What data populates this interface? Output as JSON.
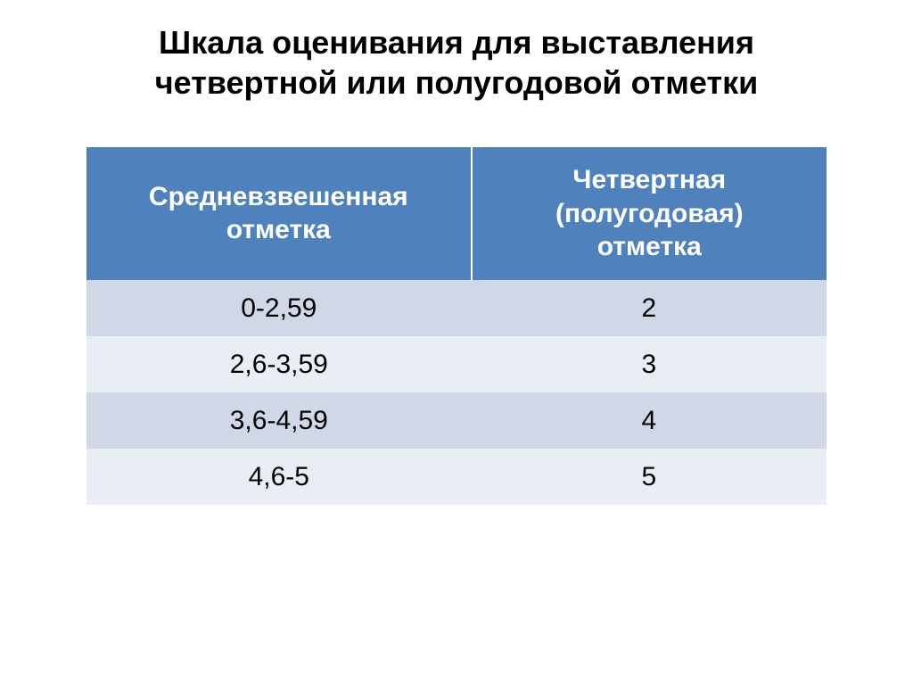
{
  "title_line1": "Шкала оценивания для выставления",
  "title_line2": "четвертной или полугодовой отметки",
  "table": {
    "header_left_l1": "Средневзвешенная",
    "header_left_l2": "отметка",
    "header_right_l1": "Четвертная",
    "header_right_l2": "(полугодовая)",
    "header_right_l3": "отметка",
    "rows": [
      {
        "range": "0-2,59",
        "grade": "2"
      },
      {
        "range": "2,6-3,59",
        "grade": "3"
      },
      {
        "range": "3,6-4,59",
        "grade": "4"
      },
      {
        "range": "4,6-5",
        "grade": "5"
      }
    ]
  },
  "style": {
    "header_bg": "#4f81bd",
    "header_text": "#ffffff",
    "row_even_bg": "#d0d8e7",
    "row_odd_bg": "#e9edf4",
    "text_color": "#000000",
    "title_fontsize": 36,
    "header_fontsize": 30,
    "cell_fontsize": 30
  }
}
